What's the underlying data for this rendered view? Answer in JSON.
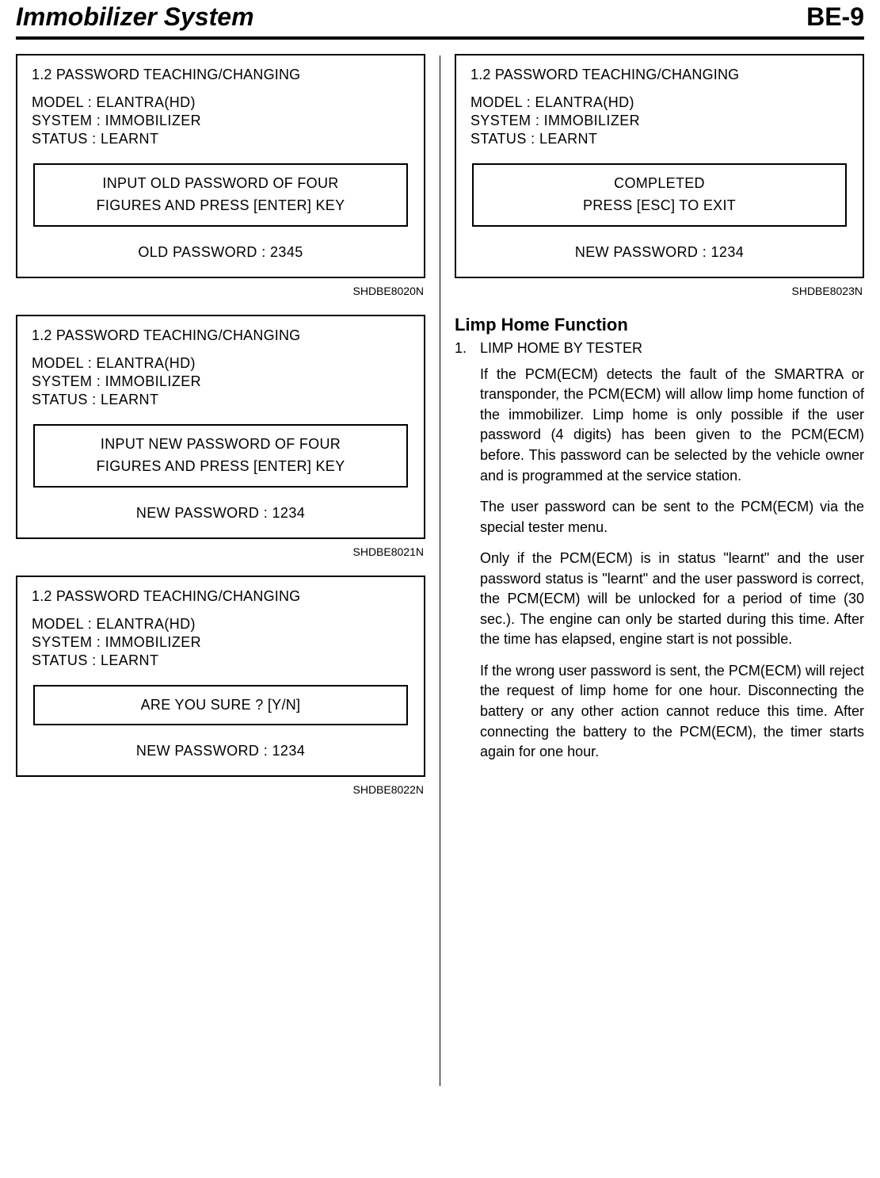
{
  "header": {
    "left": "Immobilizer System",
    "right": "BE-9"
  },
  "screens": [
    {
      "title": "1.2  PASSWORD TEACHING/CHANGING",
      "lines": [
        "MODEL   :  ELANTRA(HD)",
        "SYSTEM :  IMMOBILIZER",
        "STATUS  :  LEARNT"
      ],
      "prompt": "INPUT OLD PASSWORD OF FOUR\nFIGURES AND PRESS [ENTER] KEY",
      "footer": "OLD PASSWORD : 2345",
      "code": "SHDBE8020N"
    },
    {
      "title": "1.2  PASSWORD TEACHING/CHANGING",
      "lines": [
        "MODEL   :  ELANTRA(HD)",
        "SYSTEM :  IMMOBILIZER",
        "STATUS  :  LEARNT"
      ],
      "prompt": "INPUT NEW PASSWORD OF FOUR\nFIGURES AND PRESS [ENTER] KEY",
      "footer": "NEW PASSWORD : 1234",
      "code": "SHDBE8021N"
    },
    {
      "title": "1.2  PASSWORD TEACHING/CHANGING",
      "lines": [
        "MODEL   :  ELANTRA(HD)",
        "SYSTEM :  IMMOBILIZER",
        "STATUS  :  LEARNT"
      ],
      "prompt": "ARE YOU SURE ? [Y/N]",
      "footer": "NEW PASSWORD :  1234",
      "code": "SHDBE8022N"
    },
    {
      "title": "1.2  PASSWORD TEACHING/CHANGING",
      "lines": [
        "MODEL   :  ELANTRA(HD)",
        "SYSTEM :  IMMOBILIZER",
        "STATUS  :  LEARNT"
      ],
      "prompt": "COMPLETED\nPRESS [ESC] TO EXIT",
      "footer": "NEW PASSWORD : 1234",
      "code": "SHDBE8023N"
    }
  ],
  "section": {
    "heading": "Limp Home Function",
    "item_num": "1.",
    "item_title": "LIMP HOME BY TESTER",
    "paras": [
      "If the PCM(ECM) detects the fault of the SMARTRA or transponder, the PCM(ECM) will allow limp home function of the immobilizer. Limp home is only possible if the user password (4 digits) has been given to the PCM(ECM) before. This password can be selected by the vehicle owner and is programmed at the service station.",
      "The user password can be sent to the PCM(ECM) via the special tester menu.",
      "Only if the PCM(ECM) is in status \"learnt\" and the user password status is \"learnt\" and the user password is correct, the PCM(ECM) will be unlocked for a period of time (30 sec.). The engine can only be started during this time. After the time has elapsed, engine start is not possible.",
      "If the wrong user password is sent, the PCM(ECM) will reject the request of limp home for one hour. Disconnecting the battery or any other action cannot reduce this time. After connecting the battery to the PCM(ECM), the timer starts again for one hour."
    ]
  }
}
